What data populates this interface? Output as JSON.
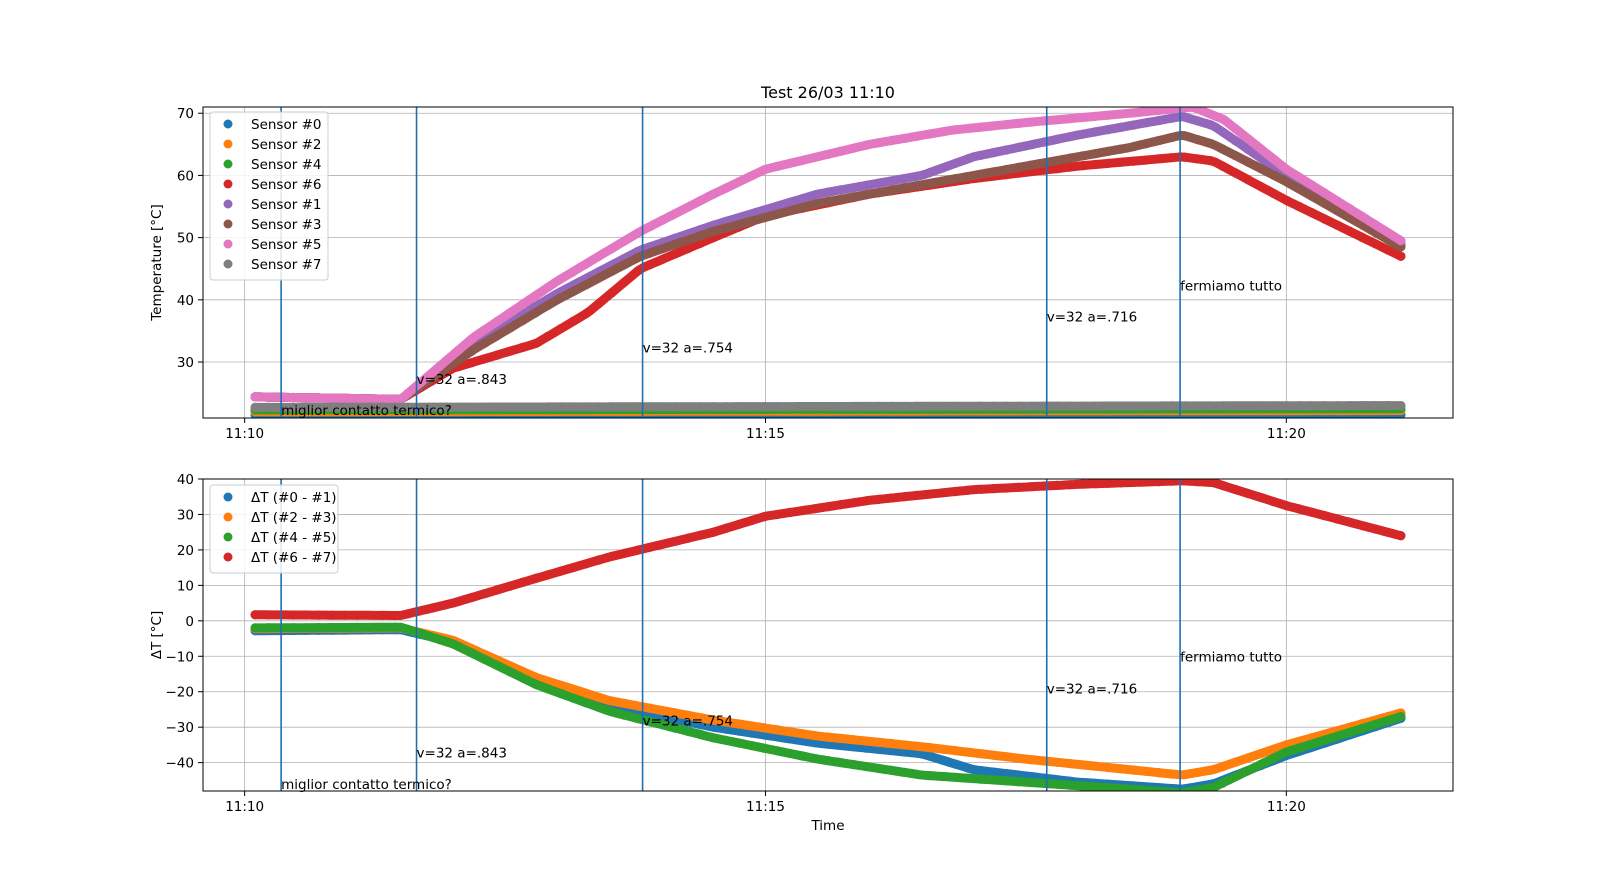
{
  "chart_data": [
    {
      "type": "scatter",
      "title": "Test 26/03 11:10",
      "xlabel": "",
      "ylabel": "Temperature [°C]",
      "xlim": [
        "11:09.6",
        "11:21.6"
      ],
      "ylim": [
        21,
        71
      ],
      "yticks": [
        30,
        40,
        50,
        60,
        70
      ],
      "xticks": [
        "11:10",
        "11:15",
        "11:20"
      ],
      "grid": true,
      "legend": "top-left",
      "series": [
        {
          "name": "Sensor #0",
          "color": "#1f77b4",
          "points": [
            [
              "11:10.1",
              21.5
            ],
            [
              "11:21.1",
              21.5
            ]
          ]
        },
        {
          "name": "Sensor #2",
          "color": "#ff7f0e",
          "points": [
            [
              "11:10.1",
              22.0
            ],
            [
              "11:21.1",
              22.2
            ]
          ]
        },
        {
          "name": "Sensor #4",
          "color": "#2ca02c",
          "points": [
            [
              "11:10.1",
              22.3
            ],
            [
              "11:21.1",
              22.5
            ]
          ]
        },
        {
          "name": "Sensor #6",
          "color": "#d62728",
          "points": [
            [
              "11:10.1",
              24.4
            ],
            [
              "11:11.5",
              24.0
            ],
            [
              "11:12.0",
              29.0
            ],
            [
              "11:12.8",
              33.0
            ],
            [
              "11:13.3",
              38.0
            ],
            [
              "11:13.8",
              45.0
            ],
            [
              "11:14.5",
              50.0
            ],
            [
              "11:15.0",
              53.5
            ],
            [
              "11:16.0",
              57.0
            ],
            [
              "11:17.0",
              59.5
            ],
            [
              "11:18.0",
              61.5
            ],
            [
              "11:19.0",
              63.0
            ],
            [
              "11:19.3",
              62.3
            ],
            [
              "11:20.0",
              56.0
            ],
            [
              "11:21.1",
              47.0
            ]
          ]
        },
        {
          "name": "Sensor #1",
          "color": "#9467bd",
          "points": [
            [
              "11:10.1",
              24.4
            ],
            [
              "11:11.5",
              24.0
            ],
            [
              "11:12.2",
              33.0
            ],
            [
              "11:13.0",
              41.0
            ],
            [
              "11:13.8",
              48.0
            ],
            [
              "11:14.5",
              52.0
            ],
            [
              "11:15.5",
              57.0
            ],
            [
              "11:16.5",
              60.0
            ],
            [
              "11:17.0",
              63.0
            ],
            [
              "11:18.0",
              66.5
            ],
            [
              "11:19.0",
              69.5
            ],
            [
              "11:19.3",
              68.0
            ],
            [
              "11:20.0",
              60.0
            ],
            [
              "11:21.1",
              49.0
            ]
          ]
        },
        {
          "name": "Sensor #3",
          "color": "#8c564b",
          "points": [
            [
              "11:10.1",
              24.4
            ],
            [
              "11:11.5",
              24.0
            ],
            [
              "11:12.2",
              32.0
            ],
            [
              "11:13.0",
              40.0
            ],
            [
              "11:13.8",
              47.0
            ],
            [
              "11:14.5",
              51.0
            ],
            [
              "11:15.5",
              55.5
            ],
            [
              "11:16.5",
              58.5
            ],
            [
              "11:17.5",
              61.5
            ],
            [
              "11:18.5",
              64.5
            ],
            [
              "11:19.0",
              66.5
            ],
            [
              "11:19.3",
              65.0
            ],
            [
              "11:20.0",
              59.0
            ],
            [
              "11:21.1",
              48.5
            ]
          ]
        },
        {
          "name": "Sensor #5",
          "color": "#e377c2",
          "points": [
            [
              "11:10.1",
              24.4
            ],
            [
              "11:11.5",
              24.0
            ],
            [
              "11:12.2",
              34.0
            ],
            [
              "11:13.0",
              43.0
            ],
            [
              "11:13.8",
              51.0
            ],
            [
              "11:14.5",
              57.0
            ],
            [
              "11:15.0",
              61.0
            ],
            [
              "11:16.0",
              65.0
            ],
            [
              "11:16.8",
              67.3
            ],
            [
              "11:17.5",
              68.5
            ],
            [
              "11:18.5",
              70.0
            ],
            [
              "11:19.1",
              71.0
            ],
            [
              "11:19.4",
              69.0
            ],
            [
              "11:20.0",
              61.0
            ],
            [
              "11:21.1",
              49.5
            ]
          ]
        },
        {
          "name": "Sensor #7",
          "color": "#7f7f7f",
          "points": [
            [
              "11:10.1",
              22.7
            ],
            [
              "11:21.1",
              23.0
            ]
          ]
        }
      ],
      "vlines": [
        "11:10.35",
        "11:11.65",
        "11:13.82",
        "11:17.7",
        "11:18.98"
      ],
      "annotations": [
        {
          "text": "miglior contatto termico?",
          "x": "11:10.35",
          "y": 21.5
        },
        {
          "text": "v=32 a=.843",
          "x": "11:11.65",
          "y": 26.5
        },
        {
          "text": "v=32 a=.754",
          "x": "11:13.82",
          "y": 31.5
        },
        {
          "text": "v=32 a=.716",
          "x": "11:17.7",
          "y": 36.5
        },
        {
          "text": "fermiamo tutto",
          "x": "11:18.98",
          "y": 41.5
        }
      ]
    },
    {
      "type": "scatter",
      "title": "",
      "xlabel": "Time",
      "ylabel": "ΔT [°C]",
      "xlim": [
        "11:09.6",
        "11:21.6"
      ],
      "ylim": [
        -48,
        40
      ],
      "yticks": [
        -40,
        -30,
        -20,
        -10,
        0,
        10,
        20,
        30,
        40
      ],
      "xticks": [
        "11:10",
        "11:15",
        "11:20"
      ],
      "grid": true,
      "legend": "top-left",
      "series": [
        {
          "name": "ΔT (#0 - #1)",
          "color": "#1f77b4",
          "points": [
            [
              "11:10.1",
              -2.8
            ],
            [
              "11:11.5",
              -2.5
            ],
            [
              "11:12.0",
              -6.0
            ],
            [
              "11:12.8",
              -17.0
            ],
            [
              "11:13.5",
              -24.0
            ],
            [
              "11:14.5",
              -30.0
            ],
            [
              "11:15.5",
              -34.5
            ],
            [
              "11:16.5",
              -37.5
            ],
            [
              "11:17.0",
              -42.0
            ],
            [
              "11:18.0",
              -45.5
            ],
            [
              "11:19.0",
              -47.5
            ],
            [
              "11:19.3",
              -46.0
            ],
            [
              "11:20.0",
              -38.0
            ],
            [
              "11:21.1",
              -27.5
            ]
          ]
        },
        {
          "name": "ΔT (#2 - #3)",
          "color": "#ff7f0e",
          "points": [
            [
              "11:10.1",
              -2.2
            ],
            [
              "11:11.5",
              -2.0
            ],
            [
              "11:12.0",
              -5.5
            ],
            [
              "11:12.8",
              -16.0
            ],
            [
              "11:13.5",
              -22.5
            ],
            [
              "11:14.5",
              -28.0
            ],
            [
              "11:15.5",
              -32.5
            ],
            [
              "11:16.5",
              -35.5
            ],
            [
              "11:17.5",
              -39.0
            ],
            [
              "11:18.5",
              -42.0
            ],
            [
              "11:19.0",
              -43.5
            ],
            [
              "11:19.3",
              -42.0
            ],
            [
              "11:20.0",
              -35.0
            ],
            [
              "11:21.1",
              -26.0
            ]
          ]
        },
        {
          "name": "ΔT (#4 - #5)",
          "color": "#2ca02c",
          "points": [
            [
              "11:10.1",
              -2.0
            ],
            [
              "11:11.5",
              -1.8
            ],
            [
              "11:12.0",
              -6.5
            ],
            [
              "11:12.8",
              -18.0
            ],
            [
              "11:13.5",
              -25.5
            ],
            [
              "11:14.5",
              -33.0
            ],
            [
              "11:15.5",
              -39.0
            ],
            [
              "11:16.5",
              -43.5
            ],
            [
              "11:17.5",
              -45.5
            ],
            [
              "11:18.5",
              -47.5
            ],
            [
              "11:19.0",
              -48.5
            ],
            [
              "11:19.3",
              -47.0
            ],
            [
              "11:20.0",
              -37.0
            ],
            [
              "11:21.1",
              -27.0
            ]
          ]
        },
        {
          "name": "ΔT (#6 - #7)",
          "color": "#d62728",
          "points": [
            [
              "11:10.1",
              1.7
            ],
            [
              "11:11.5",
              1.5
            ],
            [
              "11:12.0",
              5.0
            ],
            [
              "11:12.8",
              12.0
            ],
            [
              "11:13.5",
              18.0
            ],
            [
              "11:14.5",
              25.0
            ],
            [
              "11:15.0",
              29.5
            ],
            [
              "11:16.0",
              34.0
            ],
            [
              "11:17.0",
              37.0
            ],
            [
              "11:18.0",
              38.5
            ],
            [
              "11:19.0",
              39.5
            ],
            [
              "11:19.3",
              39.0
            ],
            [
              "11:20.0",
              32.5
            ],
            [
              "11:21.1",
              24.0
            ]
          ]
        }
      ],
      "vlines": [
        "11:10.35",
        "11:11.65",
        "11:13.82",
        "11:17.7",
        "11:18.98"
      ],
      "annotations": [
        {
          "text": "miglior contatto termico?",
          "x": "11:10.35",
          "y": -47.5
        },
        {
          "text": "v=32 a=.843",
          "x": "11:11.65",
          "y": -38.5
        },
        {
          "text": "v=32 a=.754",
          "x": "11:13.82",
          "y": -29.5
        },
        {
          "text": "v=32 a=.716",
          "x": "11:17.7",
          "y": -20.5
        },
        {
          "text": "fermiamo tutto",
          "x": "11:18.98",
          "y": -11.5
        }
      ]
    }
  ]
}
